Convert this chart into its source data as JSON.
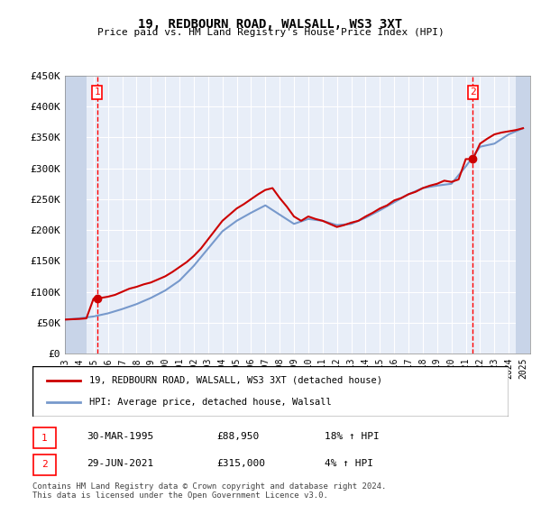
{
  "title": "19, REDBOURN ROAD, WALSALL, WS3 3XT",
  "subtitle": "Price paid vs. HM Land Registry's House Price Index (HPI)",
  "legend_label_1": "19, REDBOURN ROAD, WALSALL, WS3 3XT (detached house)",
  "legend_label_2": "HPI: Average price, detached house, Walsall",
  "footer": "Contains HM Land Registry data © Crown copyright and database right 2024.\nThis data is licensed under the Open Government Licence v3.0.",
  "point1_label": "1",
  "point1_date": "30-MAR-1995",
  "point1_price": "£88,950",
  "point1_hpi": "18% ↑ HPI",
  "point2_label": "2",
  "point2_date": "29-JUN-2021",
  "point2_price": "£315,000",
  "point2_hpi": "4% ↑ HPI",
  "point1_x": 1995.25,
  "point1_y": 88950,
  "point2_x": 2021.5,
  "point2_y": 315000,
  "ylim": [
    0,
    450000
  ],
  "yticks": [
    0,
    50000,
    100000,
    150000,
    200000,
    250000,
    300000,
    350000,
    400000,
    450000
  ],
  "ytick_labels": [
    "£0",
    "£50K",
    "£100K",
    "£150K",
    "£200K",
    "£250K",
    "£300K",
    "£350K",
    "£400K",
    "£450K"
  ],
  "xlim_start": 1993.0,
  "xlim_end": 2025.5,
  "hatch_left_end": 1994.5,
  "hatch_right_start": 2024.5,
  "line_color_1": "#cc0000",
  "line_color_2": "#7799cc",
  "background_color": "#e8eef8",
  "hatch_color": "#c8d4e8",
  "grid_color": "#ffffff",
  "point_marker_color": "#cc0000",
  "hpi_years": [
    1993,
    1994,
    1995,
    1996,
    1997,
    1998,
    1999,
    2000,
    2001,
    2002,
    2003,
    2004,
    2005,
    2006,
    2007,
    2008,
    2009,
    2010,
    2011,
    2012,
    2013,
    2014,
    2015,
    2016,
    2017,
    2018,
    2019,
    2020,
    2021,
    2022,
    2023,
    2024,
    2025
  ],
  "hpi_values": [
    55000,
    57000,
    60000,
    65000,
    72000,
    80000,
    90000,
    102000,
    118000,
    142000,
    170000,
    198000,
    215000,
    228000,
    240000,
    225000,
    210000,
    218000,
    215000,
    208000,
    210000,
    220000,
    232000,
    245000,
    258000,
    268000,
    272000,
    275000,
    303000,
    335000,
    340000,
    355000,
    365000
  ],
  "price_years": [
    1993,
    1994,
    1994.5,
    1995,
    1995.5,
    1996,
    1996.5,
    1997,
    1997.5,
    1998,
    1998.5,
    1999,
    1999.5,
    2000,
    2000.5,
    2001,
    2001.5,
    2002,
    2002.5,
    2003,
    2003.5,
    2004,
    2004.5,
    2005,
    2005.5,
    2006,
    2006.5,
    2007,
    2007.5,
    2008,
    2008.5,
    2009,
    2009.5,
    2010,
    2010.5,
    2011,
    2011.5,
    2012,
    2012.5,
    2013,
    2013.5,
    2014,
    2014.5,
    2015,
    2015.5,
    2016,
    2016.5,
    2017,
    2017.5,
    2018,
    2018.5,
    2019,
    2019.5,
    2020,
    2020.5,
    2021,
    2021.5,
    2022,
    2022.5,
    2023,
    2023.5,
    2024,
    2024.5,
    2025
  ],
  "price_values": [
    55000,
    56000,
    57000,
    88950,
    90000,
    92000,
    95000,
    100000,
    105000,
    108000,
    112000,
    115000,
    120000,
    125000,
    132000,
    140000,
    148000,
    158000,
    170000,
    185000,
    200000,
    215000,
    225000,
    235000,
    242000,
    250000,
    258000,
    265000,
    268000,
    252000,
    238000,
    222000,
    215000,
    222000,
    218000,
    215000,
    210000,
    205000,
    208000,
    212000,
    215000,
    222000,
    228000,
    235000,
    240000,
    248000,
    252000,
    258000,
    262000,
    268000,
    272000,
    275000,
    280000,
    278000,
    282000,
    315000,
    315000,
    340000,
    348000,
    355000,
    358000,
    360000,
    362000,
    365000
  ]
}
